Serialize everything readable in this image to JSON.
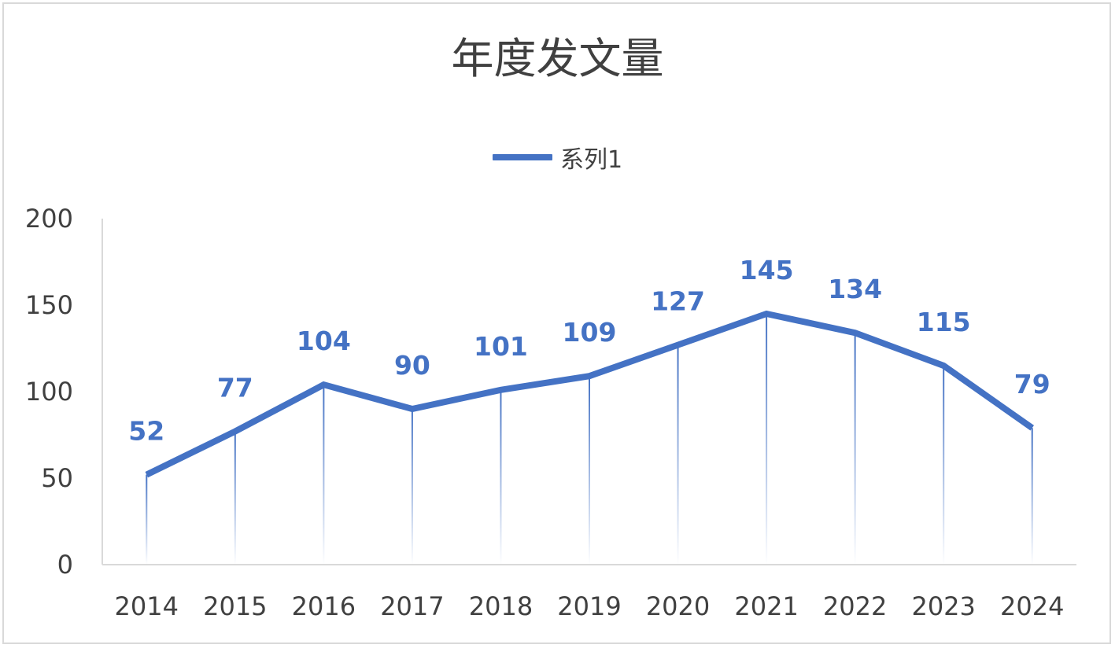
{
  "chart_data": {
    "type": "line",
    "title": "年度发文量",
    "categories": [
      "2014",
      "2015",
      "2016",
      "2017",
      "2018",
      "2019",
      "2020",
      "2021",
      "2022",
      "2023",
      "2024"
    ],
    "series": [
      {
        "name": "系列1",
        "values": [
          52,
          77,
          104,
          90,
          101,
          109,
          127,
          145,
          134,
          115,
          79
        ]
      }
    ],
    "ylim": [
      0,
      200
    ],
    "yticks": [
      "0",
      "50",
      "100",
      "150",
      "200"
    ],
    "xlabel": "",
    "ylabel": "",
    "grid": false,
    "legend": "top-center",
    "drop_lines": true,
    "data_labels": true,
    "colors": {
      "line": "#4472c4",
      "label": "#4472c4",
      "axis": "#d9d9d9",
      "text": "#404040"
    }
  }
}
